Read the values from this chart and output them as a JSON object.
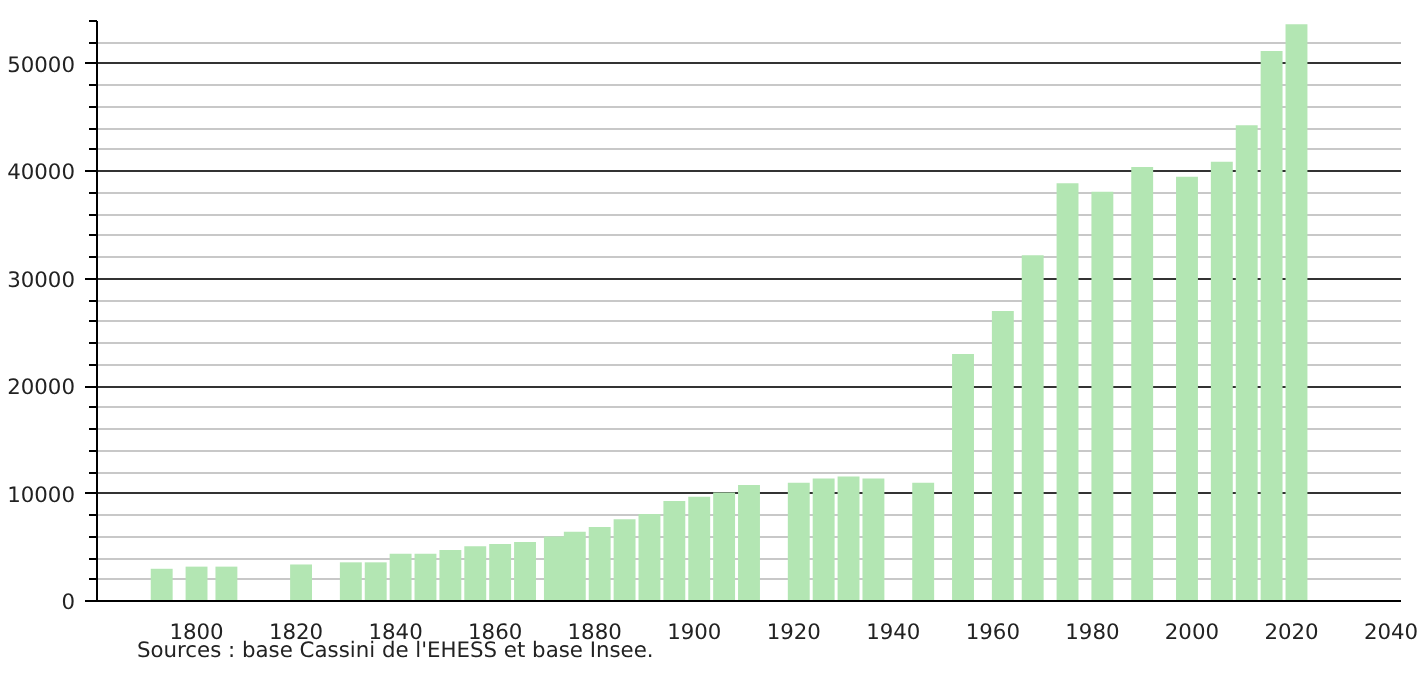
{
  "chart_data": {
    "type": "bar",
    "color": "#b3e6b3",
    "x": [
      1793,
      1800,
      1806,
      1821,
      1831,
      1836,
      1841,
      1846,
      1851,
      1856,
      1861,
      1866,
      1872,
      1876,
      1881,
      1886,
      1891,
      1896,
      1901,
      1906,
      1911,
      1921,
      1926,
      1931,
      1936,
      1946,
      1954,
      1962,
      1968,
      1975,
      1982,
      1990,
      1999,
      2006,
      2011,
      2016,
      2021
    ],
    "values": [
      3000,
      3200,
      3200,
      3400,
      3600,
      3600,
      4400,
      4400,
      4750,
      5100,
      5300,
      5500,
      6000,
      6450,
      6900,
      7600,
      8100,
      9300,
      9700,
      10100,
      10800,
      11000,
      11400,
      11600,
      11400,
      11000,
      23000,
      27000,
      32200,
      38900,
      38100,
      40400,
      39500,
      40900,
      44300,
      51200,
      53700
    ],
    "xlim": [
      1780,
      2042
    ],
    "xticks": [
      1800,
      1820,
      1840,
      1860,
      1880,
      1900,
      1920,
      1940,
      1960,
      1980,
      2000,
      2020,
      2040
    ],
    "ylim": [
      0,
      54000
    ],
    "yticks": [
      0,
      10000,
      20000,
      30000,
      40000,
      50000
    ],
    "grid": "y",
    "annotations": [
      "Sources : base Cassini de l'EHESS et base Insee."
    ]
  }
}
